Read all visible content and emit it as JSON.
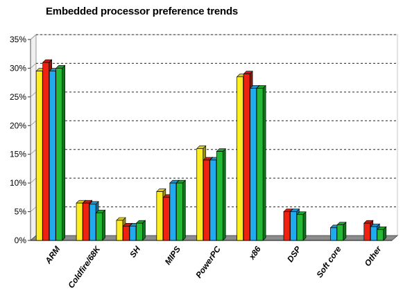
{
  "chart_data": {
    "type": "bar",
    "title": "Embedded processor preference trends",
    "xlabel": "",
    "ylabel": "",
    "ylim": [
      0,
      35
    ],
    "yticks": [
      "0%",
      "5%",
      "10%",
      "15%",
      "20%",
      "25%",
      "30%",
      "35%"
    ],
    "grid": true,
    "legend": "none",
    "three_d": true,
    "categories": [
      "ARM",
      "Coldfire/68K",
      "SH",
      "MIPS",
      "PowerPC",
      "x86",
      "DSP",
      "Soft core",
      "Other"
    ],
    "series": [
      {
        "color": "#ffee22",
        "values": [
          29.5,
          6.5,
          3.5,
          8.5,
          16,
          28.5,
          null,
          null,
          null
        ]
      },
      {
        "color": "#ee2211",
        "values": [
          31,
          6.5,
          2.5,
          7.5,
          14,
          29,
          5,
          null,
          3
        ]
      },
      {
        "color": "#22aaee",
        "values": [
          29.5,
          6.3,
          2.5,
          10,
          14,
          26.5,
          5,
          2.2,
          2.4
        ]
      },
      {
        "color": "#22bb33",
        "values": [
          30,
          4.8,
          3,
          10,
          15.5,
          26.5,
          4.5,
          2.7,
          1.9
        ]
      }
    ]
  }
}
